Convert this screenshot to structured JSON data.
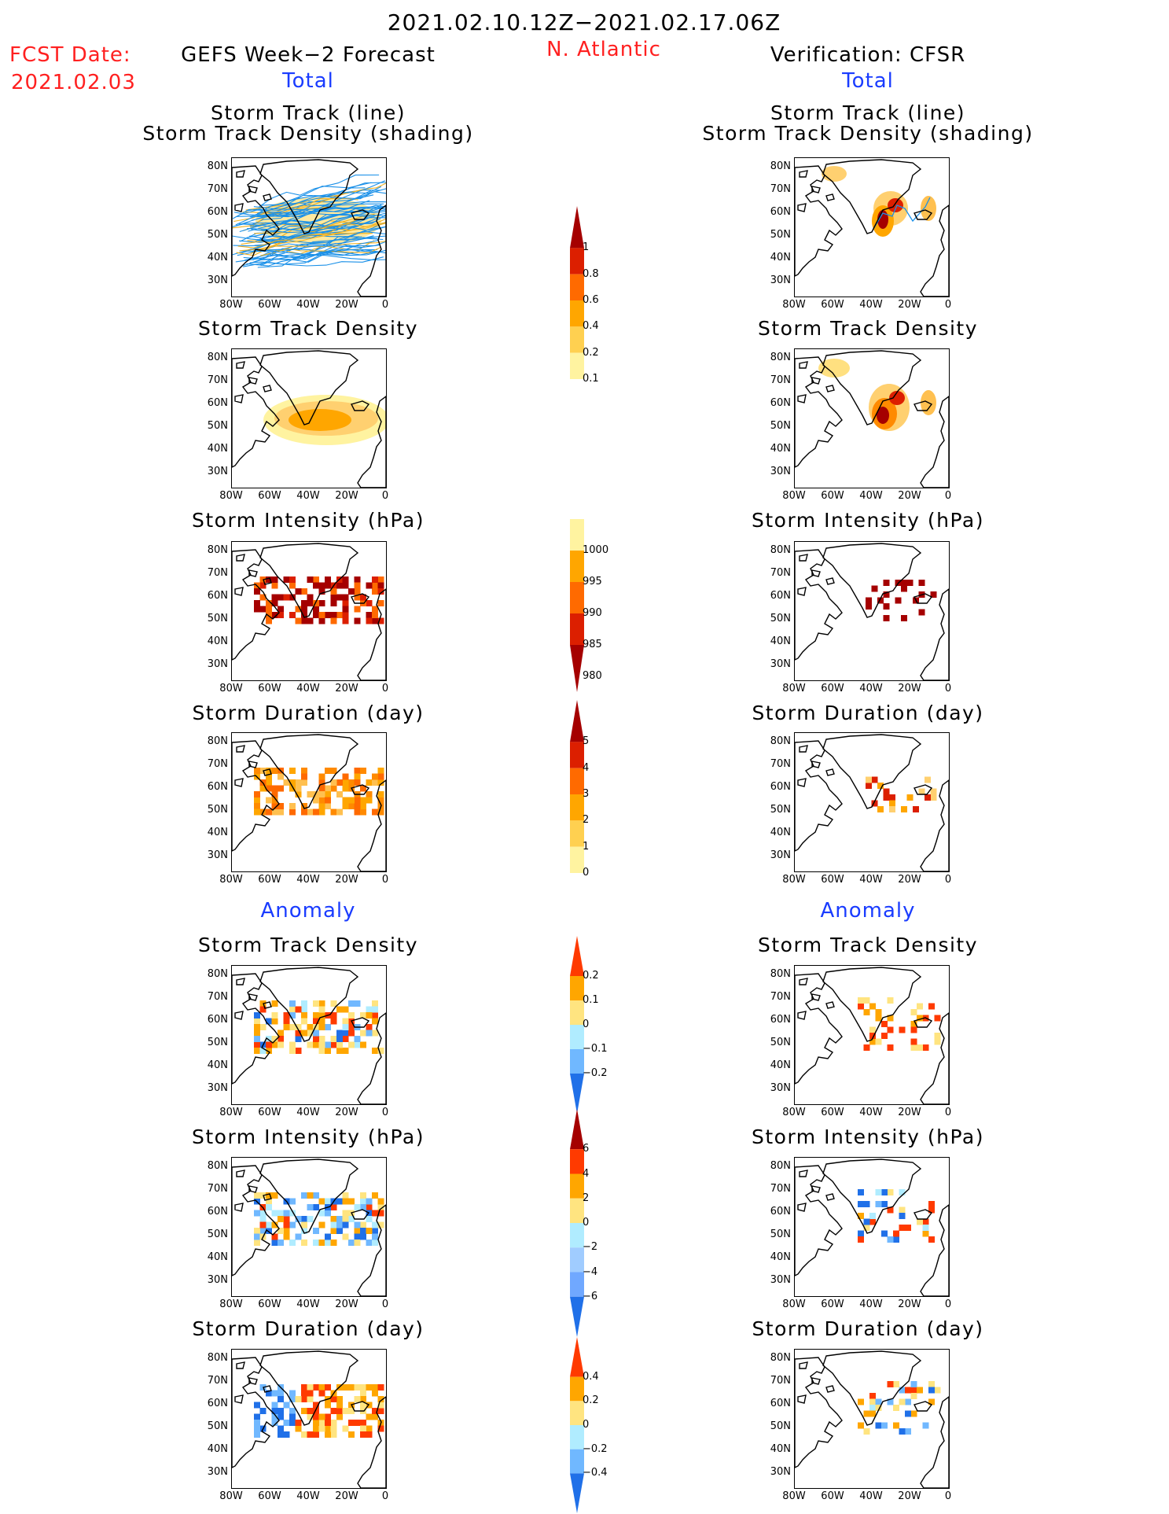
{
  "header": {
    "title": "2021.02.10.12Z−2021.02.17.06Z",
    "fcst_label": "FCST Date:",
    "fcst_date": "2021.02.03",
    "region": "N. Atlantic",
    "left_title": "GEFS Week−2 Forecast",
    "right_title": "Verification: CFSR",
    "total_label": "Total",
    "anomaly_label": "Anomaly"
  },
  "panel_titles": {
    "track_line": "Storm Track (line)",
    "track_shade": "Storm Track Density (shading)",
    "density": "Storm Track Density",
    "intensity": "Storm Intensity (hPa)",
    "duration": "Storm Duration (day)"
  },
  "axes": {
    "lat_ticks": [
      "80N",
      "70N",
      "60N",
      "50N",
      "40N",
      "30N"
    ],
    "lon_ticks": [
      "80W",
      "60W",
      "40W",
      "20W",
      "0"
    ]
  },
  "colorbars": [
    {
      "id": "density_total",
      "labels": [
        "1",
        "0.8",
        "0.6",
        "0.4",
        "0.2",
        "0.1"
      ],
      "colors": [
        "#a50000",
        "#dc1f00",
        "#ff6a00",
        "#ffa600",
        "#ffd050",
        "#fff3a0"
      ],
      "open_bottom": "line"
    },
    {
      "id": "intensity_total",
      "labels": [
        "1000",
        "995",
        "990",
        "985",
        "980"
      ],
      "colors": [
        "#fff3a0",
        "#ffa600",
        "#ff6a00",
        "#dc1f00",
        "#a50000"
      ],
      "open_top": "line"
    },
    {
      "id": "duration_total",
      "labels": [
        "5",
        "4",
        "3",
        "2",
        "1",
        "0"
      ],
      "colors": [
        "#a50000",
        "#dc1f00",
        "#ff6a00",
        "#ffa600",
        "#ffd050",
        "#fff3a0"
      ],
      "open_bottom": "line"
    },
    {
      "id": "density_anom",
      "labels": [
        "0.2",
        "0.1",
        "0",
        "−0.1",
        "−0.2"
      ],
      "colors": [
        "#ff3a00",
        "#ffa600",
        "#ffe480",
        "#b0ecff",
        "#70b8ff",
        "#2070e8"
      ]
    },
    {
      "id": "intensity_anom",
      "labels": [
        "6",
        "4",
        "2",
        "0",
        "−2",
        "−4",
        "−6"
      ],
      "colors": [
        "#a50000",
        "#ff3a00",
        "#ffa600",
        "#ffe480",
        "#b0ecff",
        "#a0ccff",
        "#70a8ff",
        "#2070e8"
      ]
    },
    {
      "id": "duration_anom",
      "labels": [
        "0.4",
        "0.2",
        "0",
        "−0.2",
        "−0.4"
      ],
      "colors": [
        "#ff3a00",
        "#ffa600",
        "#ffe480",
        "#b0ecff",
        "#70b8ff",
        "#2070e8"
      ]
    }
  ]
}
